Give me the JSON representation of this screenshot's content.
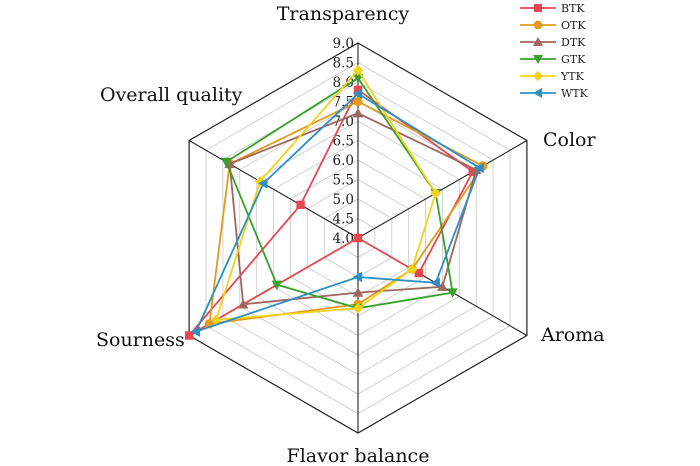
{
  "chart_data": {
    "type": "radar",
    "axes": [
      "Transparency",
      "Color",
      "Aroma",
      "Flavor balance",
      "Sourness",
      "Overall quality"
    ],
    "rmin": 4.0,
    "rmax": 9.0,
    "ticks": [
      "4.0",
      "4.5",
      "5.0",
      "5.5",
      "6.0",
      "6.5",
      "7.0",
      "7.5",
      "8.0",
      "8.5",
      "9.0"
    ],
    "grid": true,
    "legend_position": "top-right",
    "series": [
      {
        "name": "BTK",
        "marker": "square",
        "color": "#e8474f",
        "values": [
          7.8,
          7.4,
          5.8,
          4.0,
          9.0,
          5.7
        ]
      },
      {
        "name": "OTK",
        "marker": "circle",
        "color": "#e3991d",
        "values": [
          7.5,
          7.7,
          5.6,
          5.7,
          8.4,
          7.8
        ]
      },
      {
        "name": "DTK",
        "marker": "triangle-up",
        "color": "#a0655c",
        "values": [
          7.2,
          7.5,
          6.5,
          5.4,
          7.4,
          7.8
        ]
      },
      {
        "name": "GTK",
        "marker": "triangle-down",
        "color": "#36a12b",
        "values": [
          8.1,
          6.3,
          6.8,
          5.8,
          6.4,
          7.9
        ]
      },
      {
        "name": "YTK",
        "marker": "diamond",
        "color": "#f2d21b",
        "values": [
          8.3,
          6.3,
          5.6,
          5.8,
          8.2,
          6.9
        ]
      },
      {
        "name": "WTK",
        "marker": "triangle-left",
        "color": "#2b90c4",
        "values": [
          7.7,
          7.6,
          6.3,
          5.0,
          8.8,
          6.8
        ]
      }
    ]
  }
}
